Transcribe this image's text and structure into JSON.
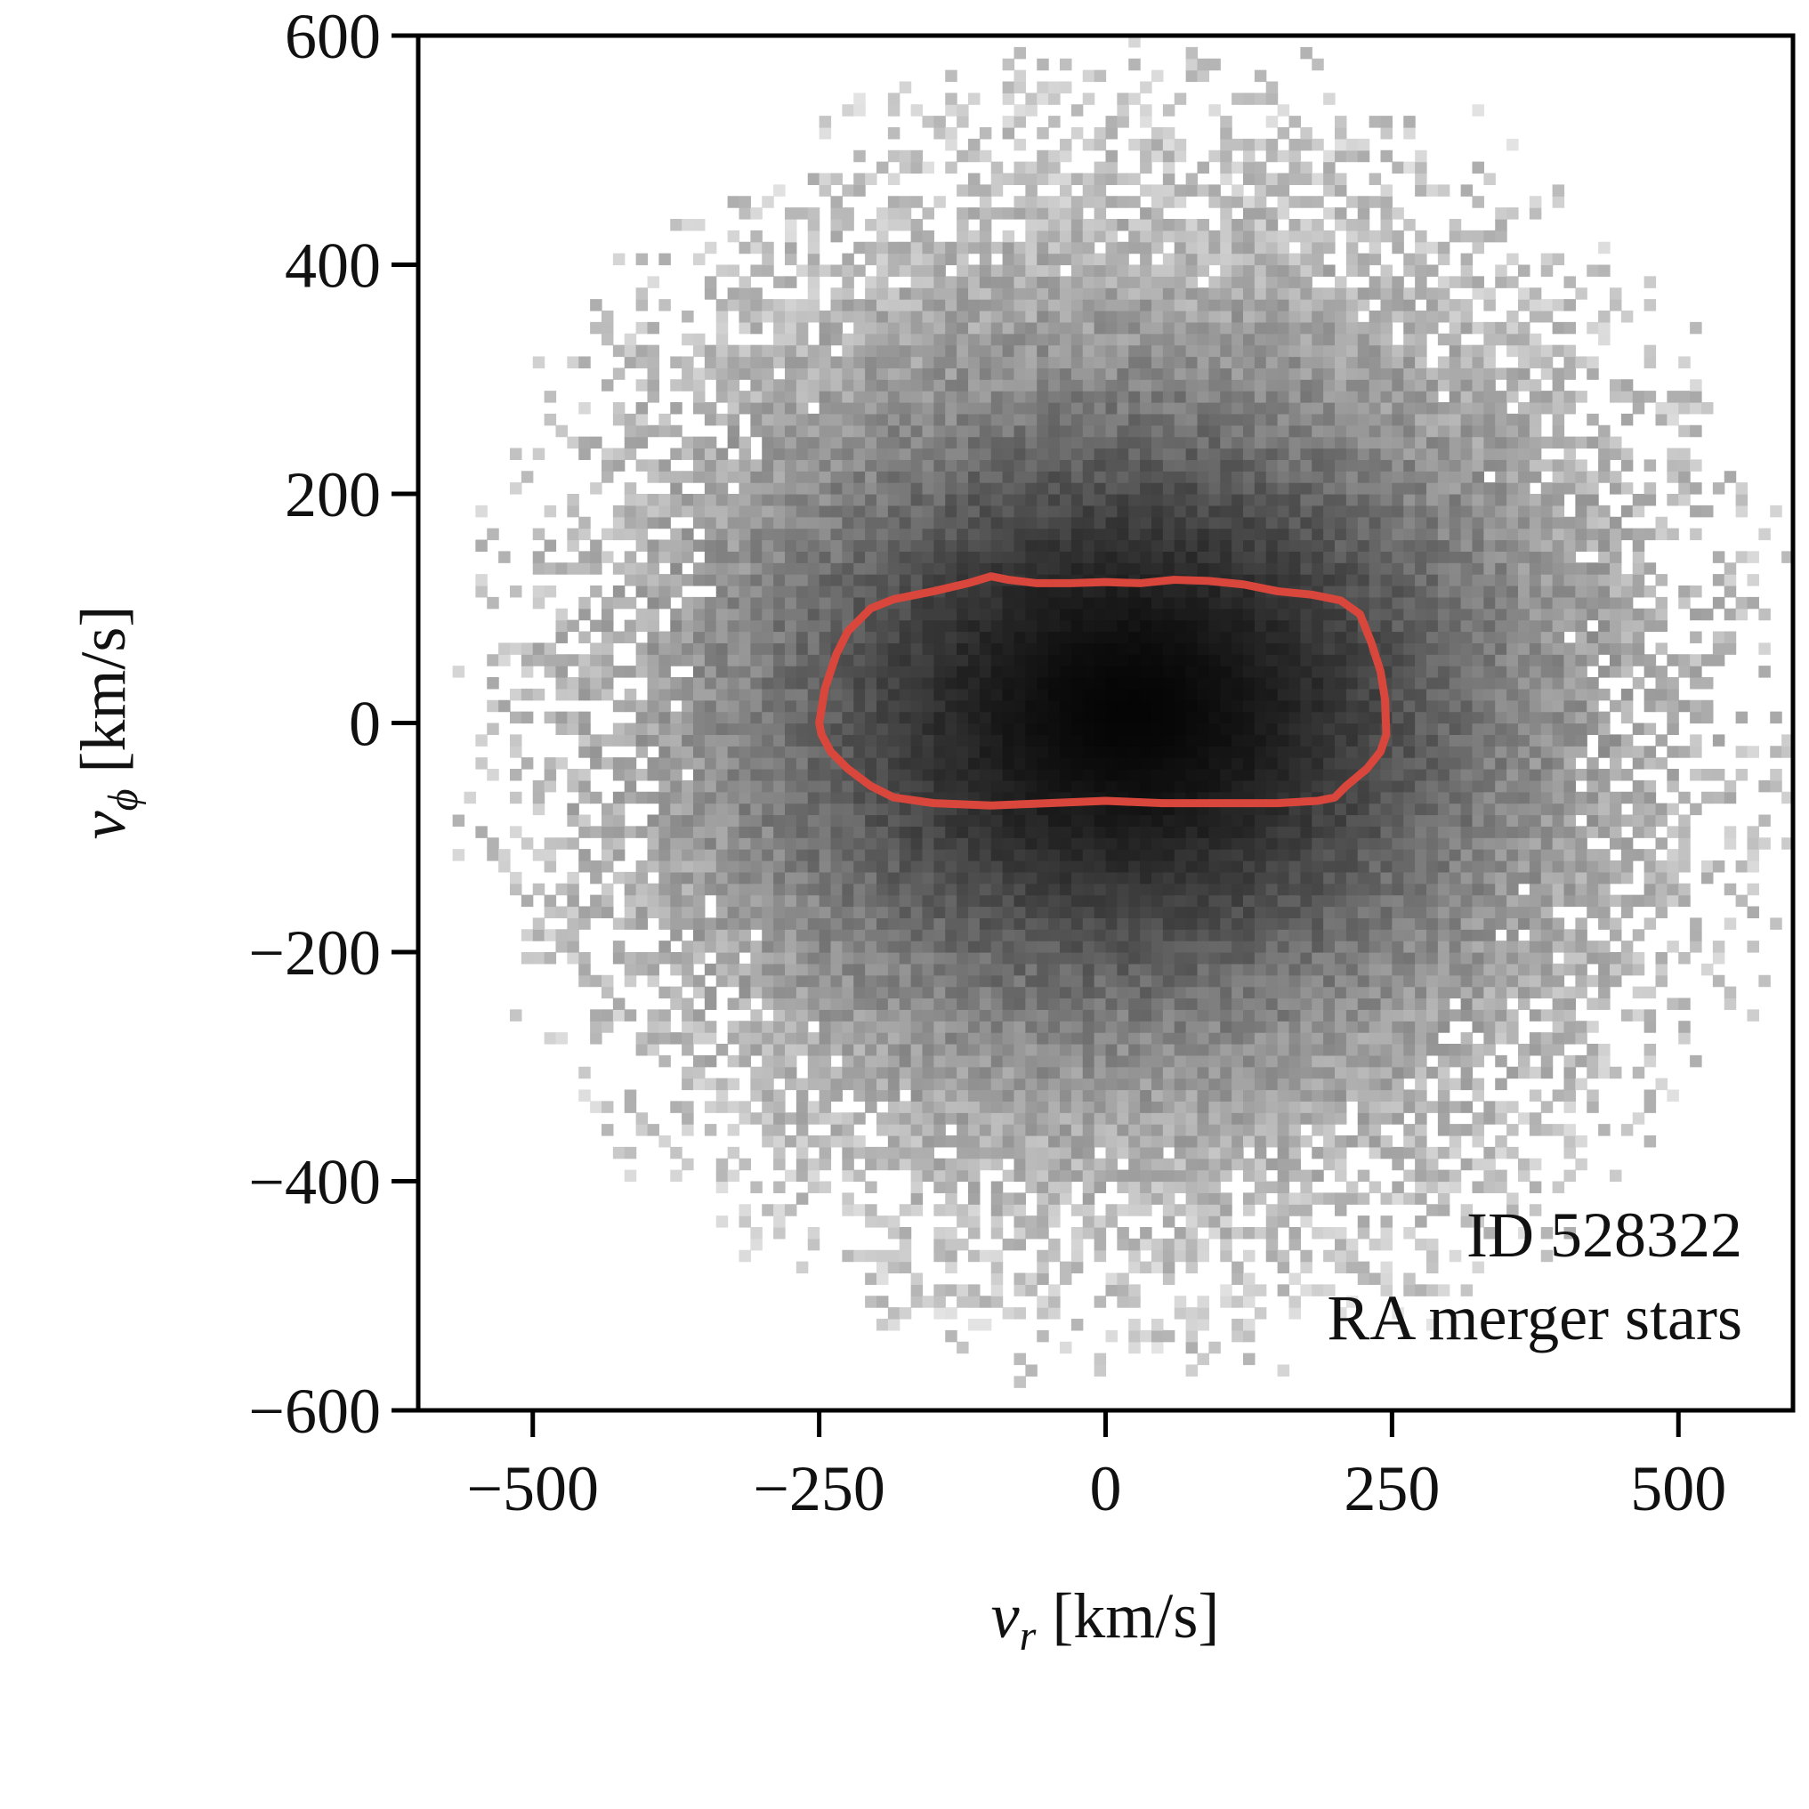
{
  "chart_data": {
    "type": "heatmap",
    "description_kind": "2D histogram (grayscale density) with a red contour",
    "x_axis": {
      "variable": "v",
      "subscript": "r",
      "unit": "[km/s]",
      "lim": [
        -600,
        600
      ],
      "ticks": [
        -500,
        -250,
        0,
        250,
        500
      ],
      "tick_labels": [
        "−500",
        "−250",
        "0",
        "250",
        "500"
      ]
    },
    "y_axis": {
      "variable": "v",
      "subscript": "ϕ",
      "unit": "[km/s]",
      "lim": [
        -600,
        600
      ],
      "ticks": [
        -600,
        -400,
        -200,
        0,
        200,
        400,
        600
      ],
      "tick_labels": [
        "−600",
        "−400",
        "−200",
        "0",
        "200",
        "400",
        "600"
      ]
    },
    "annotations": [
      "ID 528322",
      "RA merger stars"
    ],
    "annotation_placement": "bottom-right",
    "grid": false,
    "colormap": "Greys",
    "density": {
      "center": [
        20,
        10
      ],
      "sigma_vr": 180,
      "sigma_vphi": 150,
      "extent_radius": 520,
      "bin_size": 10
    },
    "contour": {
      "color": "#d9463b",
      "points": [
        [
          -250,
          0
        ],
        [
          -245,
          30
        ],
        [
          -235,
          60
        ],
        [
          -225,
          80
        ],
        [
          -205,
          100
        ],
        [
          -185,
          108
        ],
        [
          -150,
          115
        ],
        [
          -120,
          122
        ],
        [
          -100,
          128
        ],
        [
          -85,
          125
        ],
        [
          -60,
          122
        ],
        [
          -30,
          122
        ],
        [
          0,
          123
        ],
        [
          30,
          122
        ],
        [
          60,
          125
        ],
        [
          90,
          124
        ],
        [
          120,
          121
        ],
        [
          150,
          115
        ],
        [
          180,
          112
        ],
        [
          205,
          107
        ],
        [
          222,
          95
        ],
        [
          232,
          70
        ],
        [
          240,
          45
        ],
        [
          244,
          20
        ],
        [
          245,
          -10
        ],
        [
          240,
          -25
        ],
        [
          228,
          -40
        ],
        [
          210,
          -55
        ],
        [
          200,
          -65
        ],
        [
          185,
          -68
        ],
        [
          150,
          -70
        ],
        [
          100,
          -70
        ],
        [
          50,
          -70
        ],
        [
          0,
          -68
        ],
        [
          -50,
          -70
        ],
        [
          -100,
          -72
        ],
        [
          -150,
          -70
        ],
        [
          -185,
          -65
        ],
        [
          -205,
          -55
        ],
        [
          -225,
          -40
        ],
        [
          -240,
          -25
        ],
        [
          -248,
          -10
        ]
      ]
    }
  }
}
